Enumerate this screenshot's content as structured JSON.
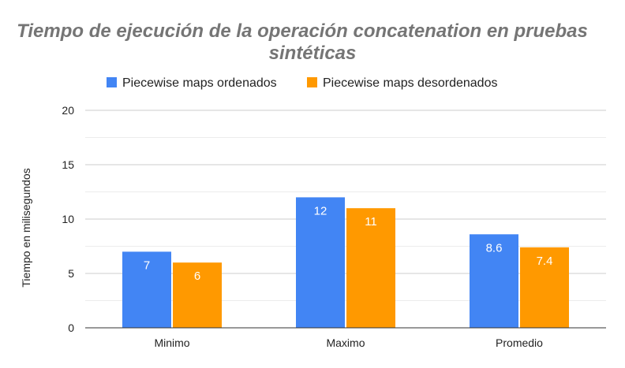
{
  "chart_data": {
    "type": "bar",
    "title_line1": "Tiempo de ejecución de la operación concatenation en pruebas",
    "title_line2": "sintéticas",
    "xlabel": "",
    "ylabel": "Tiempo en milisegundos",
    "categories": [
      "Minimo",
      "Maximo",
      "Promedio"
    ],
    "series": [
      {
        "name": "Piecewise maps ordenados",
        "color": "#4285f4",
        "values": [
          7,
          12,
          8.6
        ],
        "labels": [
          "7",
          "12",
          "8.6"
        ]
      },
      {
        "name": "Piecewise maps desordenados",
        "color": "#ff9900",
        "values": [
          6,
          11,
          7.4
        ],
        "labels": [
          "6",
          "11",
          "7.4"
        ]
      }
    ],
    "ylim": [
      0,
      20
    ],
    "yticks": [
      0,
      5,
      10,
      15,
      20
    ],
    "minor_gridlines": true,
    "legend_position": "top"
  }
}
